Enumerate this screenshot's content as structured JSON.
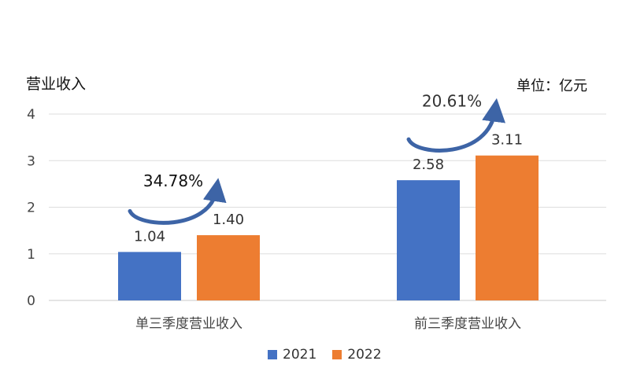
{
  "chart_data": {
    "type": "bar",
    "ylabel": "营业收入",
    "unit_label": "单位：亿元",
    "categories": [
      "单三季度营业收入",
      "前三季度营业收入"
    ],
    "series": [
      {
        "name": "2021",
        "color": "#4472c4",
        "values": [
          1.04,
          2.58
        ],
        "labels": [
          "1.04",
          "2.58"
        ]
      },
      {
        "name": "2022",
        "color": "#ed7d31",
        "values": [
          1.4,
          3.11
        ],
        "labels": [
          "1.40",
          "3.11"
        ]
      }
    ],
    "growth_annotations": [
      "34.78%",
      "20.61%"
    ],
    "ylim": [
      0,
      4
    ],
    "yticks": [
      "0",
      "1",
      "2",
      "3",
      "4"
    ],
    "grid": true,
    "legend_position": "bottom"
  }
}
